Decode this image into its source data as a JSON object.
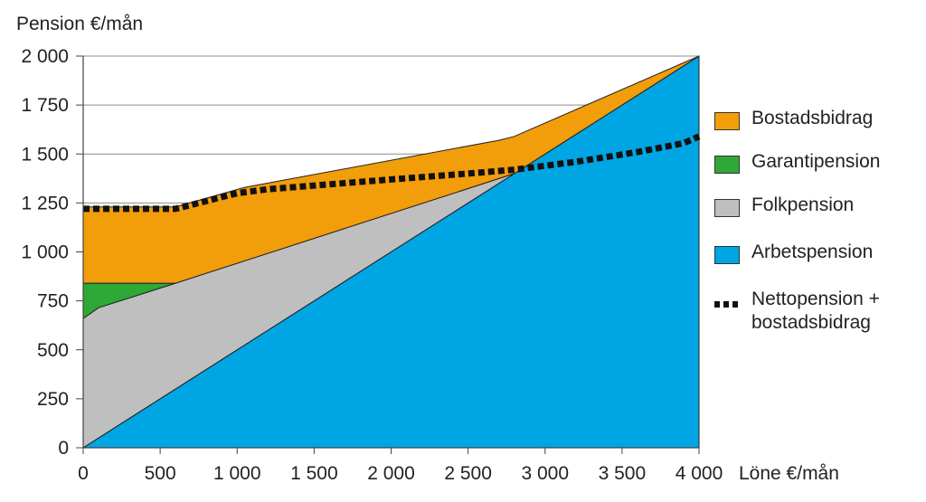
{
  "chart_data": {
    "type": "area",
    "ylabel": "Pension €/mån",
    "xlabel": "Löne €/mån",
    "xlim": [
      0,
      4000
    ],
    "ylim": [
      0,
      2000
    ],
    "xticks": [
      0,
      500,
      1000,
      1500,
      2000,
      2500,
      3000,
      3500,
      4000
    ],
    "xtick_labels": [
      "0",
      "500",
      "1 000",
      "1 500",
      "2 000",
      "2 500",
      "3 000",
      "3 500",
      "4 000"
    ],
    "yticks": [
      0,
      250,
      500,
      750,
      1000,
      1250,
      1500,
      1750,
      2000
    ],
    "ytick_labels": [
      "0",
      "250",
      "500",
      "750",
      "1 000",
      "1 250",
      "1 500",
      "1 750",
      "2 000"
    ],
    "grid": "horizontal",
    "legend_position": "right",
    "series": [
      {
        "name": "Arbetspension",
        "color": "#00A5E3",
        "top": [
          [
            0,
            0
          ],
          [
            4000,
            2000
          ]
        ]
      },
      {
        "name": "Folkpension",
        "color": "#BFBFBF",
        "top": [
          [
            0,
            660
          ],
          [
            100,
            715
          ],
          [
            600,
            840
          ],
          [
            2800,
            1400
          ]
        ]
      },
      {
        "name": "Garantipension",
        "color": "#2EA836",
        "top": [
          [
            0,
            840
          ],
          [
            600,
            840
          ]
        ]
      },
      {
        "name": "Bostadsbidrag",
        "color": "#F29D0A",
        "top": [
          [
            0,
            1230
          ],
          [
            600,
            1230
          ],
          [
            1050,
            1330
          ],
          [
            2700,
            1570
          ],
          [
            2800,
            1590
          ],
          [
            4000,
            2000
          ]
        ]
      },
      {
        "name": "Nettopension +\nbostadsbidrag",
        "color": "#111111",
        "style": "dashed",
        "points": [
          [
            0,
            1220
          ],
          [
            600,
            1220
          ],
          [
            1000,
            1300
          ],
          [
            1200,
            1320
          ],
          [
            2000,
            1370
          ],
          [
            2500,
            1400
          ],
          [
            2800,
            1420
          ],
          [
            3200,
            1460
          ],
          [
            3600,
            1510
          ],
          [
            3900,
            1555
          ],
          [
            4000,
            1590
          ]
        ]
      }
    ]
  }
}
